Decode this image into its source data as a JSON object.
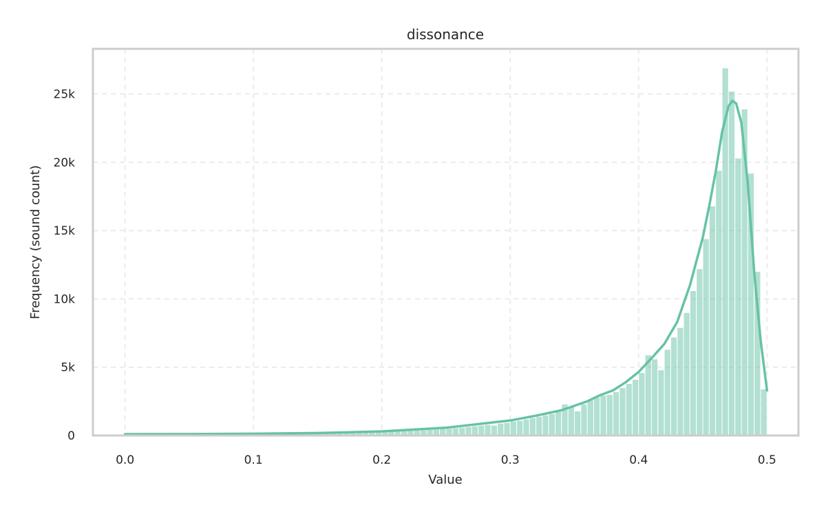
{
  "chart_data": {
    "type": "bar",
    "title": "dissonance",
    "xlabel": "Value",
    "ylabel": "Frequency (sound count)",
    "xlim": [
      -0.025,
      0.5245
    ],
    "ylim": [
      0,
      28300
    ],
    "xticks": [
      {
        "value": 0.0,
        "label": "0.0"
      },
      {
        "value": 0.1,
        "label": "0.1"
      },
      {
        "value": 0.2,
        "label": "0.2"
      },
      {
        "value": 0.3,
        "label": "0.3"
      },
      {
        "value": 0.4,
        "label": "0.4"
      },
      {
        "value": 0.5,
        "label": "0.5"
      }
    ],
    "yticks": [
      {
        "value": 0,
        "label": "0"
      },
      {
        "value": 5000,
        "label": "5k"
      },
      {
        "value": 10000,
        "label": "10k"
      },
      {
        "value": 15000,
        "label": "15k"
      },
      {
        "value": 20000,
        "label": "20k"
      },
      {
        "value": 25000,
        "label": "25k"
      }
    ],
    "grid": true,
    "color": "#66c2a5",
    "bin_width": 0.005,
    "bins": [
      {
        "x": 0.0,
        "value": 100
      },
      {
        "x": 0.005,
        "value": 100
      },
      {
        "x": 0.01,
        "value": 100
      },
      {
        "x": 0.015,
        "value": 100
      },
      {
        "x": 0.02,
        "value": 100
      },
      {
        "x": 0.025,
        "value": 100
      },
      {
        "x": 0.03,
        "value": 100
      },
      {
        "x": 0.035,
        "value": 100
      },
      {
        "x": 0.04,
        "value": 100
      },
      {
        "x": 0.045,
        "value": 100
      },
      {
        "x": 0.05,
        "value": 100
      },
      {
        "x": 0.055,
        "value": 110
      },
      {
        "x": 0.06,
        "value": 110
      },
      {
        "x": 0.065,
        "value": 110
      },
      {
        "x": 0.07,
        "value": 110
      },
      {
        "x": 0.075,
        "value": 110
      },
      {
        "x": 0.08,
        "value": 115
      },
      {
        "x": 0.085,
        "value": 115
      },
      {
        "x": 0.09,
        "value": 120
      },
      {
        "x": 0.095,
        "value": 120
      },
      {
        "x": 0.1,
        "value": 120
      },
      {
        "x": 0.105,
        "value": 125
      },
      {
        "x": 0.11,
        "value": 130
      },
      {
        "x": 0.115,
        "value": 135
      },
      {
        "x": 0.12,
        "value": 140
      },
      {
        "x": 0.125,
        "value": 145
      },
      {
        "x": 0.13,
        "value": 150
      },
      {
        "x": 0.135,
        "value": 155
      },
      {
        "x": 0.14,
        "value": 160
      },
      {
        "x": 0.145,
        "value": 165
      },
      {
        "x": 0.15,
        "value": 170
      },
      {
        "x": 0.155,
        "value": 180
      },
      {
        "x": 0.16,
        "value": 190
      },
      {
        "x": 0.165,
        "value": 200
      },
      {
        "x": 0.17,
        "value": 210
      },
      {
        "x": 0.175,
        "value": 225
      },
      {
        "x": 0.18,
        "value": 240
      },
      {
        "x": 0.185,
        "value": 255
      },
      {
        "x": 0.19,
        "value": 270
      },
      {
        "x": 0.195,
        "value": 285
      },
      {
        "x": 0.2,
        "value": 300
      },
      {
        "x": 0.205,
        "value": 310
      },
      {
        "x": 0.21,
        "value": 320
      },
      {
        "x": 0.215,
        "value": 340
      },
      {
        "x": 0.22,
        "value": 360
      },
      {
        "x": 0.225,
        "value": 380
      },
      {
        "x": 0.23,
        "value": 400
      },
      {
        "x": 0.235,
        "value": 430
      },
      {
        "x": 0.24,
        "value": 460
      },
      {
        "x": 0.245,
        "value": 490
      },
      {
        "x": 0.25,
        "value": 520
      },
      {
        "x": 0.255,
        "value": 560
      },
      {
        "x": 0.26,
        "value": 600
      },
      {
        "x": 0.265,
        "value": 650
      },
      {
        "x": 0.27,
        "value": 700
      },
      {
        "x": 0.275,
        "value": 750
      },
      {
        "x": 0.28,
        "value": 800
      },
      {
        "x": 0.285,
        "value": 750
      },
      {
        "x": 0.29,
        "value": 900
      },
      {
        "x": 0.295,
        "value": 950
      },
      {
        "x": 0.3,
        "value": 1050
      },
      {
        "x": 0.305,
        "value": 1100
      },
      {
        "x": 0.31,
        "value": 1200
      },
      {
        "x": 0.315,
        "value": 1300
      },
      {
        "x": 0.32,
        "value": 1400
      },
      {
        "x": 0.325,
        "value": 1500
      },
      {
        "x": 0.33,
        "value": 1600
      },
      {
        "x": 0.335,
        "value": 1750
      },
      {
        "x": 0.34,
        "value": 2300
      },
      {
        "x": 0.345,
        "value": 2100
      },
      {
        "x": 0.35,
        "value": 1800
      },
      {
        "x": 0.355,
        "value": 2300
      },
      {
        "x": 0.36,
        "value": 2600
      },
      {
        "x": 0.365,
        "value": 2800
      },
      {
        "x": 0.37,
        "value": 2950
      },
      {
        "x": 0.375,
        "value": 3000
      },
      {
        "x": 0.38,
        "value": 3200
      },
      {
        "x": 0.385,
        "value": 3500
      },
      {
        "x": 0.39,
        "value": 3800
      },
      {
        "x": 0.395,
        "value": 4100
      },
      {
        "x": 0.4,
        "value": 4600
      },
      {
        "x": 0.405,
        "value": 5900
      },
      {
        "x": 0.41,
        "value": 5600
      },
      {
        "x": 0.415,
        "value": 4800
      },
      {
        "x": 0.42,
        "value": 6300
      },
      {
        "x": 0.425,
        "value": 7200
      },
      {
        "x": 0.43,
        "value": 7900
      },
      {
        "x": 0.435,
        "value": 9000
      },
      {
        "x": 0.44,
        "value": 10600
      },
      {
        "x": 0.445,
        "value": 12200
      },
      {
        "x": 0.45,
        "value": 14400
      },
      {
        "x": 0.455,
        "value": 16800
      },
      {
        "x": 0.46,
        "value": 19400
      },
      {
        "x": 0.465,
        "value": 26900
      },
      {
        "x": 0.47,
        "value": 25200
      },
      {
        "x": 0.475,
        "value": 20300
      },
      {
        "x": 0.48,
        "value": 23900
      },
      {
        "x": 0.485,
        "value": 19200
      },
      {
        "x": 0.49,
        "value": 12000
      },
      {
        "x": 0.495,
        "value": 3400
      }
    ],
    "kde": [
      {
        "x": 0.0,
        "y": 100
      },
      {
        "x": 0.05,
        "y": 110
      },
      {
        "x": 0.1,
        "y": 130
      },
      {
        "x": 0.15,
        "y": 180
      },
      {
        "x": 0.2,
        "y": 300
      },
      {
        "x": 0.25,
        "y": 570
      },
      {
        "x": 0.3,
        "y": 1100
      },
      {
        "x": 0.32,
        "y": 1450
      },
      {
        "x": 0.34,
        "y": 1850
      },
      {
        "x": 0.36,
        "y": 2500
      },
      {
        "x": 0.37,
        "y": 2950
      },
      {
        "x": 0.38,
        "y": 3300
      },
      {
        "x": 0.39,
        "y": 3900
      },
      {
        "x": 0.4,
        "y": 4650
      },
      {
        "x": 0.41,
        "y": 5650
      },
      {
        "x": 0.42,
        "y": 6700
      },
      {
        "x": 0.43,
        "y": 8300
      },
      {
        "x": 0.44,
        "y": 11000
      },
      {
        "x": 0.45,
        "y": 14500
      },
      {
        "x": 0.455,
        "y": 16800
      },
      {
        "x": 0.46,
        "y": 19300
      },
      {
        "x": 0.465,
        "y": 22200
      },
      {
        "x": 0.47,
        "y": 24100
      },
      {
        "x": 0.473,
        "y": 24500
      },
      {
        "x": 0.476,
        "y": 24300
      },
      {
        "x": 0.48,
        "y": 22900
      },
      {
        "x": 0.485,
        "y": 18500
      },
      {
        "x": 0.49,
        "y": 12000
      },
      {
        "x": 0.495,
        "y": 7000
      },
      {
        "x": 0.5,
        "y": 3300
      }
    ]
  }
}
